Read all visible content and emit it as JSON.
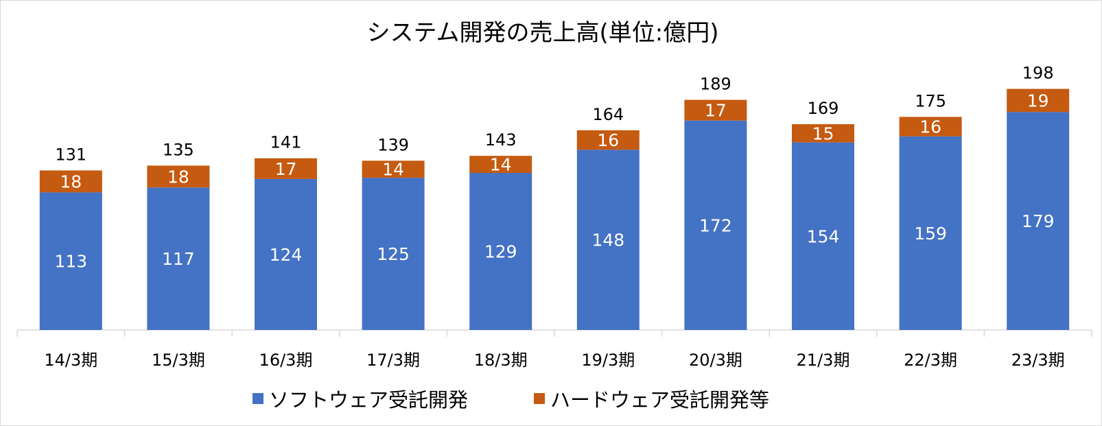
{
  "chart_data": {
    "type": "bar",
    "stacked": true,
    "title": "システム開発の売上高(単位:億円)",
    "categories": [
      "14/3期",
      "15/3期",
      "16/3期",
      "17/3期",
      "18/3期",
      "19/3期",
      "20/3期",
      "21/3期",
      "22/3期",
      "23/3期"
    ],
    "series": [
      {
        "name": "ソフトウェア受託開発",
        "color": "#4472C4",
        "values": [
          113,
          117,
          124,
          125,
          129,
          148,
          172,
          154,
          159,
          179
        ]
      },
      {
        "name": "ハードウェア受託開発等",
        "color": "#C55A11",
        "values": [
          18,
          18,
          17,
          14,
          14,
          16,
          17,
          15,
          16,
          19
        ]
      }
    ],
    "totals": [
      131,
      135,
      141,
      139,
      143,
      164,
      189,
      169,
      175,
      198
    ],
    "ylim": [
      0,
      200
    ],
    "grid": false,
    "legend": "bottom"
  }
}
